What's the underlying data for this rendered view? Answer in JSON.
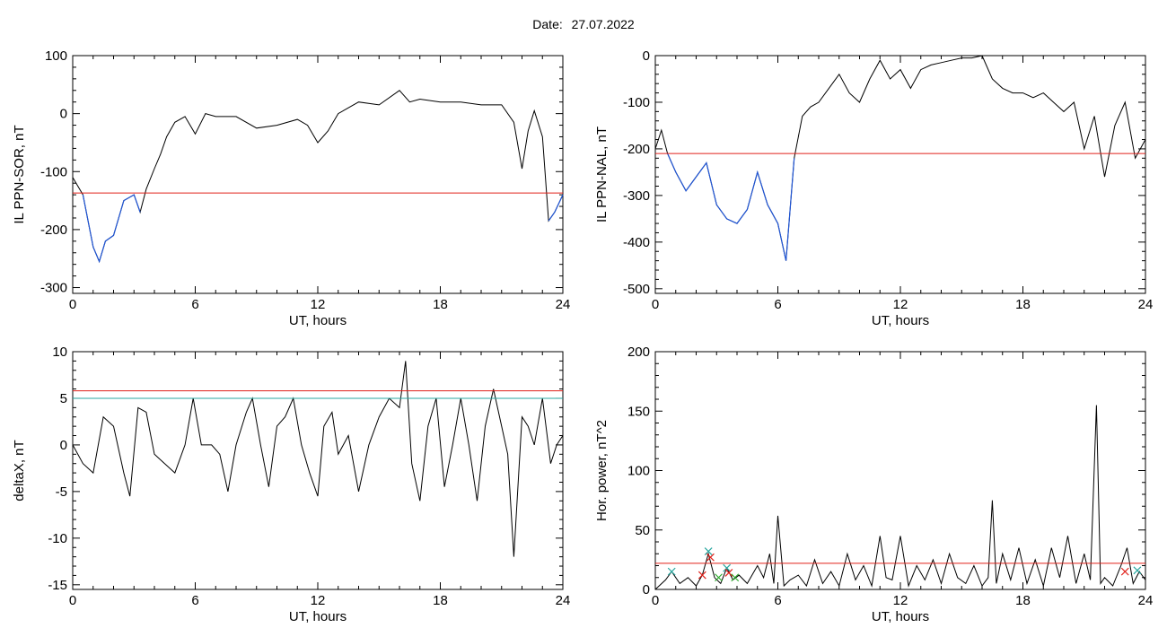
{
  "page": {
    "date_label": "Date:",
    "date_value": "27.07.2022"
  },
  "colors": {
    "threshold_red": "#e0201a",
    "threshold_cyan": "#2aa7a0",
    "below_series_blue": "#1f55d6",
    "marker_cyan": "#2aa7a0",
    "marker_red": "#e0201a",
    "marker_green": "#2faa2f"
  },
  "chart_data": [
    {
      "id": "ppn-sor",
      "type": "line",
      "xlabel": "UT, hours",
      "ylabel": "IL PPN-SOR, nT",
      "xlim": [
        0,
        24
      ],
      "ylim": [
        -310,
        100
      ],
      "xticks": [
        0,
        6,
        12,
        18,
        24
      ],
      "yticks": [
        100,
        0,
        -100,
        -200,
        -300
      ],
      "threshold": {
        "value": -137,
        "color": "red"
      },
      "below_threshold_color": "blue",
      "x": [
        0,
        0.5,
        1.0,
        1.3,
        1.6,
        2.0,
        2.5,
        3.0,
        3.3,
        3.6,
        4.0,
        4.3,
        4.6,
        5.0,
        5.5,
        6.0,
        6.5,
        7.0,
        8.0,
        9.0,
        10.0,
        11.0,
        11.5,
        12.0,
        12.5,
        13.0,
        14.0,
        15.0,
        16.0,
        16.5,
        17.0,
        18.0,
        19.0,
        20.0,
        21.0,
        21.6,
        22.0,
        22.3,
        22.6,
        23.0,
        23.3,
        23.6,
        24.0
      ],
      "y": [
        -110,
        -140,
        -230,
        -255,
        -220,
        -210,
        -150,
        -140,
        -170,
        -130,
        -95,
        -70,
        -40,
        -15,
        -5,
        -35,
        0,
        -5,
        -5,
        -25,
        -20,
        -10,
        -20,
        -50,
        -30,
        0,
        20,
        15,
        40,
        20,
        25,
        20,
        20,
        15,
        15,
        -15,
        -95,
        -30,
        5,
        -40,
        -185,
        -170,
        -140
      ]
    },
    {
      "id": "ppn-nal",
      "type": "line",
      "xlabel": "UT, hours",
      "ylabel": "IL PPN-NAL, nT",
      "xlim": [
        0,
        24
      ],
      "ylim": [
        -510,
        0
      ],
      "xticks": [
        0,
        6,
        12,
        18,
        24
      ],
      "yticks": [
        0,
        -100,
        -200,
        -300,
        -400,
        -500
      ],
      "threshold": {
        "value": -210,
        "color": "red"
      },
      "below_threshold_color": "blue",
      "x": [
        0,
        0.3,
        0.6,
        1.0,
        1.5,
        2.0,
        2.5,
        3.0,
        3.5,
        4.0,
        4.5,
        5.0,
        5.5,
        6.0,
        6.4,
        6.8,
        7.2,
        7.6,
        8.0,
        8.5,
        9.0,
        9.5,
        10.0,
        10.5,
        11.0,
        11.5,
        12.0,
        12.5,
        13.0,
        13.5,
        14.0,
        14.5,
        15.0,
        15.5,
        16.0,
        16.5,
        17.0,
        17.5,
        18.0,
        18.5,
        19.0,
        19.5,
        20.0,
        20.5,
        21.0,
        21.5,
        22.0,
        22.5,
        23.0,
        23.5,
        24.0
      ],
      "y": [
        -200,
        -160,
        -210,
        -250,
        -290,
        -260,
        -230,
        -320,
        -350,
        -360,
        -330,
        -250,
        -320,
        -360,
        -440,
        -220,
        -130,
        -110,
        -100,
        -70,
        -40,
        -80,
        -100,
        -50,
        -10,
        -50,
        -30,
        -70,
        -30,
        -20,
        -15,
        -10,
        -5,
        -5,
        0,
        -50,
        -70,
        -80,
        -80,
        -90,
        -80,
        -100,
        -120,
        -100,
        -200,
        -130,
        -260,
        -150,
        -100,
        -220,
        -180
      ]
    },
    {
      "id": "deltax",
      "type": "line",
      "xlabel": "UT, hours",
      "ylabel": "deltaX, nT",
      "xlim": [
        0,
        24
      ],
      "ylim": [
        -15.5,
        10
      ],
      "xticks": [
        0,
        6,
        12,
        18,
        24
      ],
      "yticks": [
        10,
        5,
        0,
        -5,
        -10,
        -15
      ],
      "thresholds": [
        {
          "value": 5.8,
          "color": "red"
        },
        {
          "value": 5.0,
          "color": "cyan"
        }
      ],
      "x": [
        0,
        0.5,
        1.0,
        1.5,
        2.0,
        2.5,
        2.8,
        3.2,
        3.6,
        4.0,
        4.5,
        5.0,
        5.5,
        5.9,
        6.3,
        6.8,
        7.2,
        7.6,
        8.0,
        8.5,
        8.8,
        9.2,
        9.6,
        10.0,
        10.4,
        10.8,
        11.2,
        11.6,
        12.0,
        12.3,
        12.7,
        13.0,
        13.5,
        14.0,
        14.5,
        15.0,
        15.5,
        16.0,
        16.3,
        16.6,
        17.0,
        17.4,
        17.8,
        18.2,
        18.6,
        19.0,
        19.4,
        19.8,
        20.2,
        20.6,
        21.0,
        21.3,
        21.6,
        22.0,
        22.3,
        22.6,
        23.0,
        23.4,
        23.7,
        24.0
      ],
      "y": [
        0,
        -2,
        -3,
        3,
        2,
        -3,
        -5.5,
        4,
        3.5,
        -1,
        -2,
        -3,
        0,
        5,
        0,
        0,
        -1,
        -5,
        0,
        3.5,
        5,
        0,
        -4.5,
        2,
        3,
        5,
        0,
        -3,
        -5.5,
        2,
        3.5,
        -1,
        1,
        -5,
        0,
        3,
        5,
        4,
        9,
        -2,
        -6,
        2,
        5,
        -4.5,
        0,
        5,
        0,
        -6,
        2,
        6,
        2,
        -1,
        -12,
        3,
        2,
        0,
        5,
        -2,
        0,
        1
      ]
    },
    {
      "id": "hor-power",
      "type": "line",
      "xlabel": "UT, hours",
      "ylabel": "Hor. power, nT^2",
      "xlim": [
        0,
        24
      ],
      "ylim": [
        0,
        200
      ],
      "xticks": [
        0,
        6,
        12,
        18,
        24
      ],
      "yticks": [
        0,
        50,
        100,
        150,
        200
      ],
      "threshold": {
        "value": 22,
        "color": "red"
      },
      "x": [
        0,
        0.5,
        0.8,
        1.2,
        1.6,
        2.0,
        2.3,
        2.6,
        2.9,
        3.2,
        3.5,
        3.8,
        4.1,
        4.5,
        5.0,
        5.3,
        5.6,
        5.8,
        6.0,
        6.3,
        6.6,
        7.0,
        7.4,
        7.8,
        8.2,
        8.6,
        9.0,
        9.4,
        9.8,
        10.2,
        10.6,
        11.0,
        11.3,
        11.6,
        12.0,
        12.4,
        12.8,
        13.2,
        13.6,
        14.0,
        14.4,
        14.8,
        15.2,
        15.6,
        16.0,
        16.3,
        16.5,
        16.7,
        17.0,
        17.4,
        17.8,
        18.2,
        18.6,
        19.0,
        19.4,
        19.8,
        20.2,
        20.6,
        21.0,
        21.3,
        21.6,
        21.8,
        22.0,
        22.4,
        22.8,
        23.1,
        23.4,
        23.7,
        24.0
      ],
      "y": [
        0,
        8,
        15,
        5,
        10,
        3,
        12,
        30,
        10,
        5,
        18,
        8,
        12,
        5,
        20,
        10,
        30,
        5,
        62,
        3,
        8,
        12,
        3,
        25,
        5,
        15,
        3,
        30,
        8,
        20,
        3,
        45,
        10,
        8,
        45,
        3,
        20,
        8,
        25,
        5,
        30,
        10,
        5,
        20,
        3,
        10,
        75,
        5,
        30,
        8,
        35,
        5,
        25,
        3,
        35,
        10,
        45,
        5,
        30,
        8,
        155,
        5,
        10,
        3,
        20,
        35,
        5,
        15,
        8
      ]
    }
  ],
  "markers": [
    {
      "x": 0.8,
      "y": 15,
      "symbol": "×",
      "color": "cyan"
    },
    {
      "x": 2.3,
      "y": 12,
      "symbol": "×",
      "color": "red"
    },
    {
      "x": 2.6,
      "y": 32,
      "symbol": "×",
      "color": "cyan"
    },
    {
      "x": 2.7,
      "y": 27,
      "symbol": "×",
      "color": "red"
    },
    {
      "x": 3.1,
      "y": 10,
      "symbol": "×",
      "color": "green"
    },
    {
      "x": 3.5,
      "y": 18,
      "symbol": "×",
      "color": "cyan"
    },
    {
      "x": 3.6,
      "y": 14,
      "symbol": "×",
      "color": "red"
    },
    {
      "x": 3.9,
      "y": 10,
      "symbol": "×",
      "color": "green"
    },
    {
      "x": 23.0,
      "y": 15,
      "symbol": "×",
      "color": "red"
    },
    {
      "x": 23.6,
      "y": 16,
      "symbol": "×",
      "color": "cyan"
    }
  ]
}
